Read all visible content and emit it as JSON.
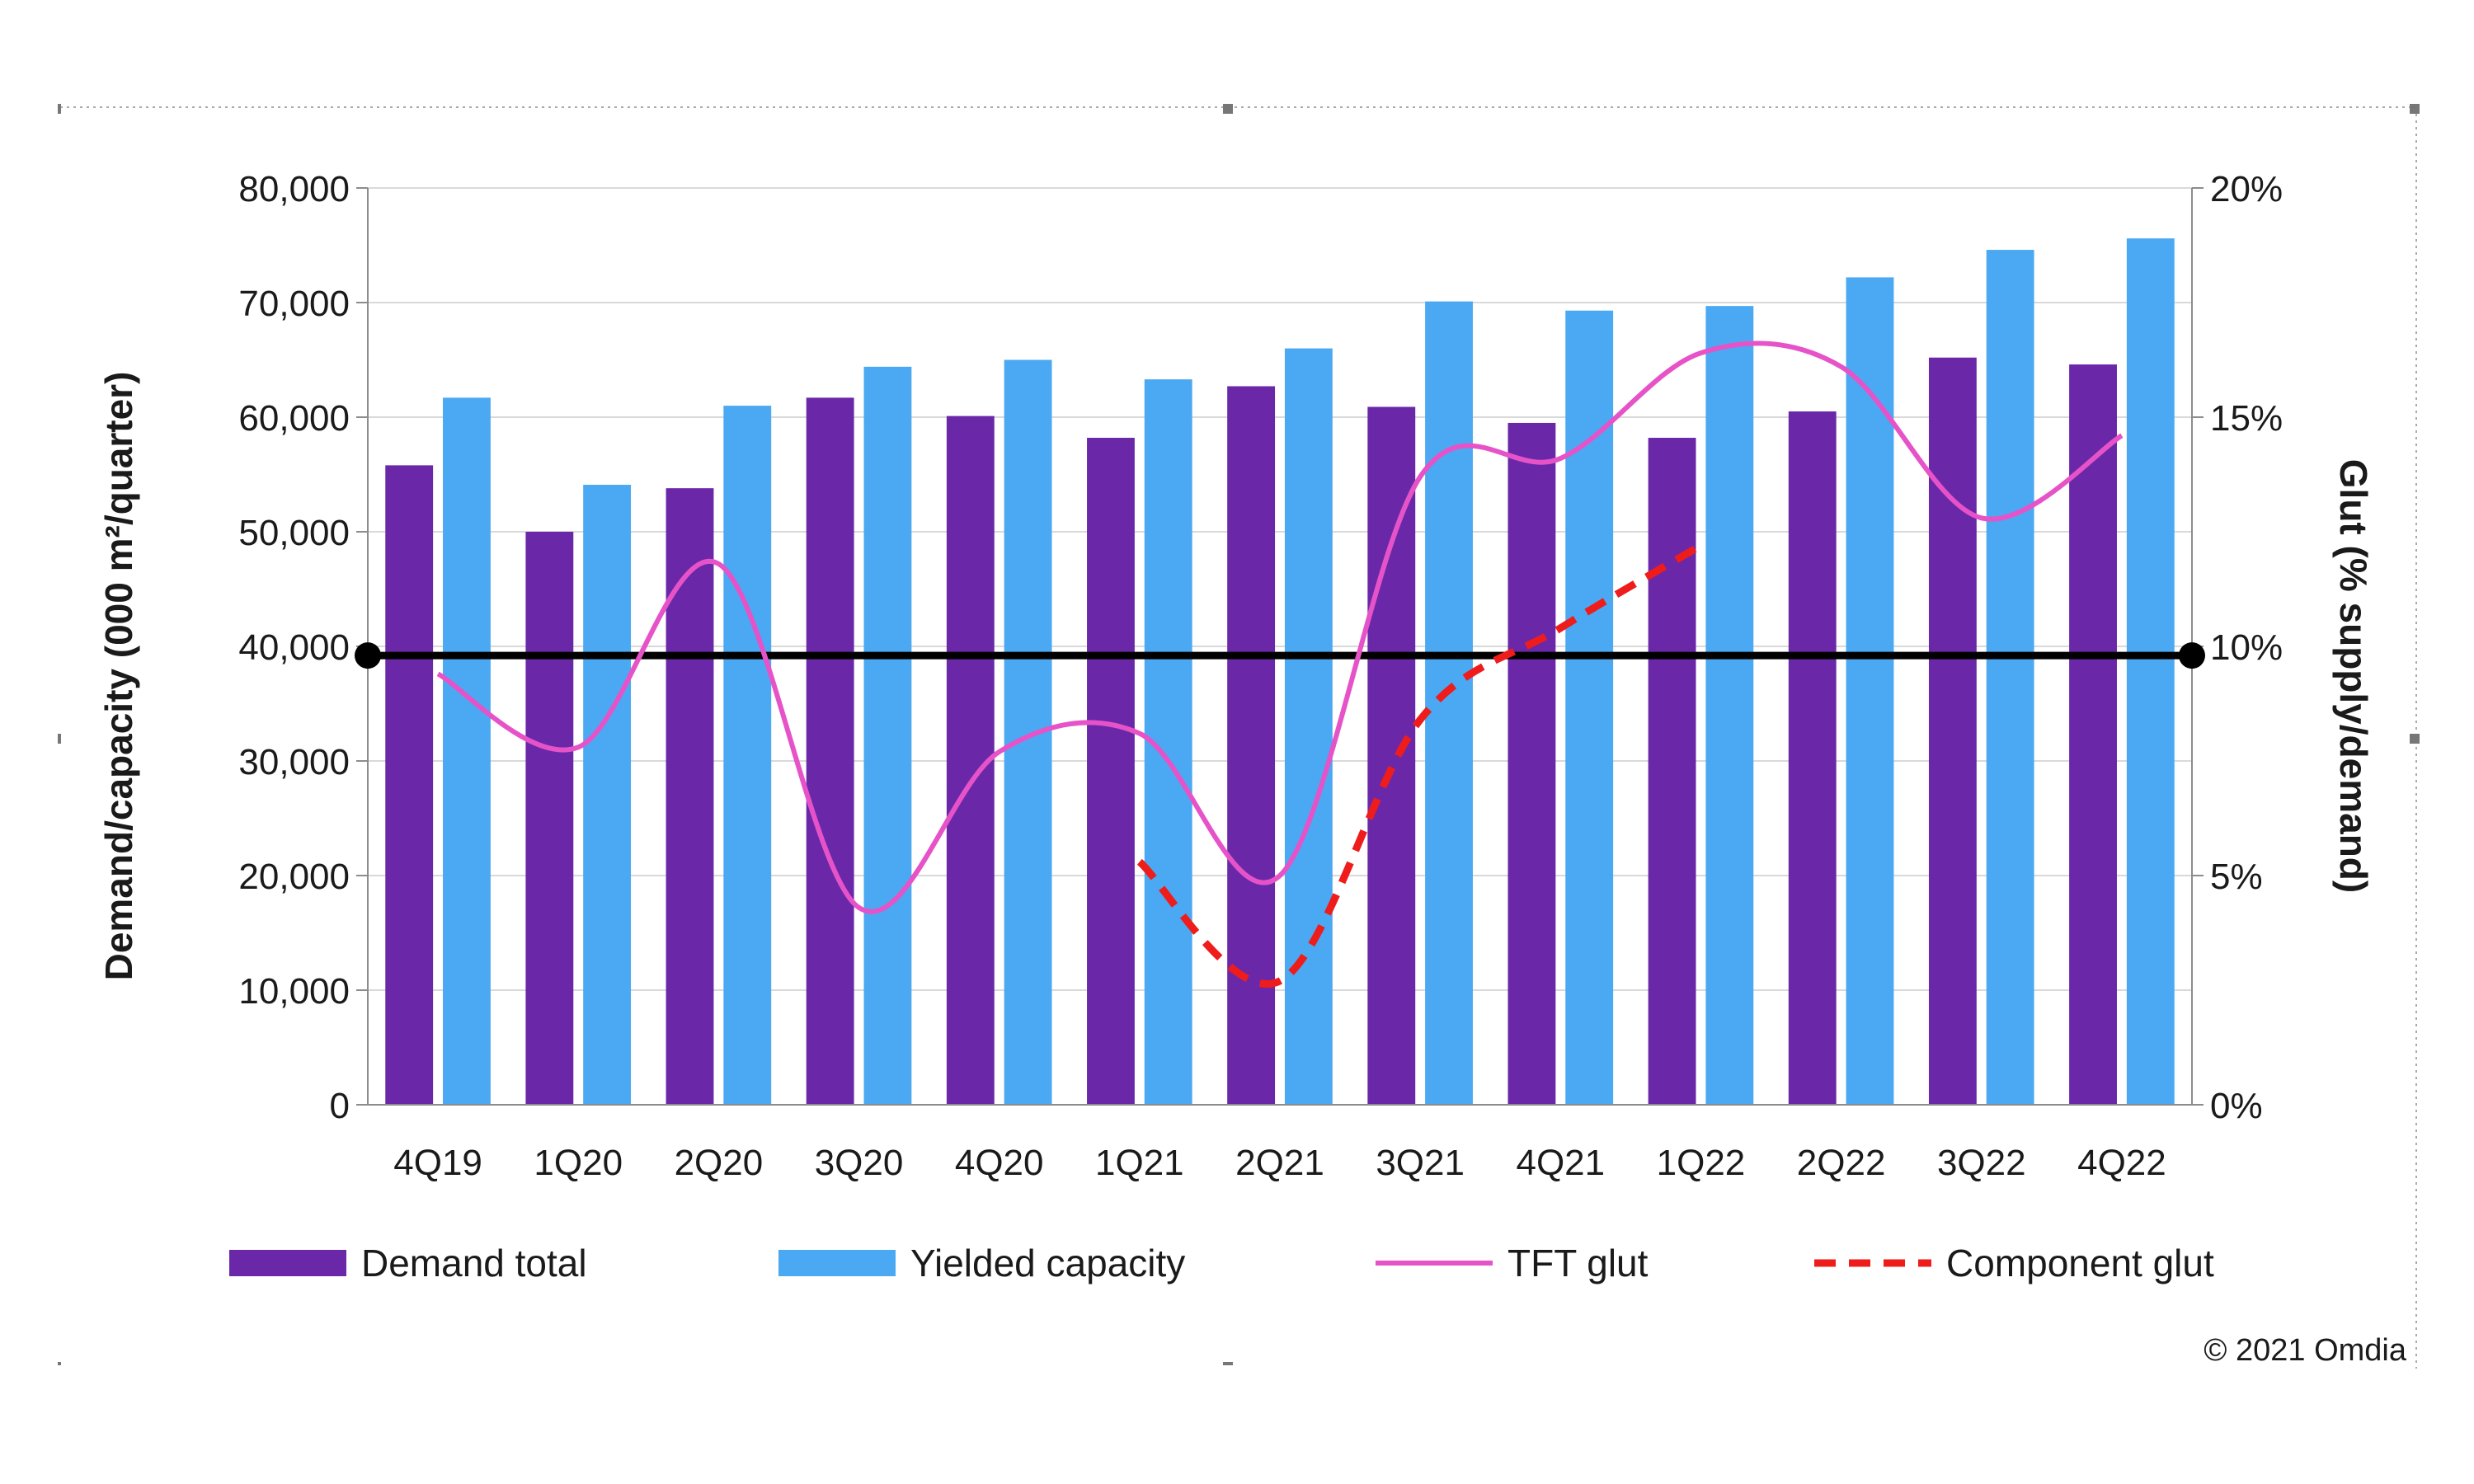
{
  "chart_data": {
    "type": "bar",
    "categories": [
      "4Q19",
      "1Q20",
      "2Q20",
      "3Q20",
      "4Q20",
      "1Q21",
      "2Q21",
      "3Q21",
      "4Q21",
      "1Q22",
      "2Q22",
      "3Q22",
      "4Q22"
    ],
    "series": [
      {
        "name": "Demand total",
        "type": "bar",
        "axis": "left",
        "color": "#6a28a8",
        "values": [
          55800,
          50000,
          53800,
          61700,
          60100,
          58200,
          62700,
          60900,
          59500,
          58200,
          60500,
          65200,
          64600
        ]
      },
      {
        "name": "Yielded capacity",
        "type": "bar",
        "axis": "left",
        "color": "#4aa9f2",
        "values": [
          61700,
          54100,
          61000,
          64400,
          65000,
          63300,
          66000,
          70100,
          69300,
          69700,
          72200,
          74600,
          75600
        ]
      },
      {
        "name": "TFT glut",
        "type": "line",
        "axis": "right",
        "color": "#e653c8",
        "dashed": false,
        "values": [
          9.4,
          7.8,
          11.8,
          4.3,
          7.7,
          8.1,
          5.0,
          13.7,
          14.1,
          16.4,
          16.1,
          12.8,
          14.6
        ]
      },
      {
        "name": "Component glut",
        "type": "line",
        "axis": "right",
        "color": "#ef1c1c",
        "dashed": true,
        "values": [
          null,
          null,
          null,
          null,
          null,
          5.3,
          2.7,
          8.4,
          10.4,
          12.2,
          null,
          null,
          null
        ]
      }
    ],
    "reference_line": {
      "axis": "right",
      "value": 9.8,
      "color": "#000000"
    },
    "xlabel": "",
    "ylabel": "Demand/capacity (000 m²/quarter)",
    "ylabel_right": "Glut (% supply/demand)",
    "ylim": [
      0,
      80000
    ],
    "ylim_right": [
      0,
      20
    ],
    "yticks": [
      "0",
      "10,000",
      "20,000",
      "30,000",
      "40,000",
      "50,000",
      "60,000",
      "70,000",
      "80,000"
    ],
    "yticks_right": [
      "0%",
      "5%",
      "10%",
      "15%",
      "20%"
    ],
    "grid": true,
    "legend_position": "bottom",
    "source": "© 2021 Omdia"
  }
}
